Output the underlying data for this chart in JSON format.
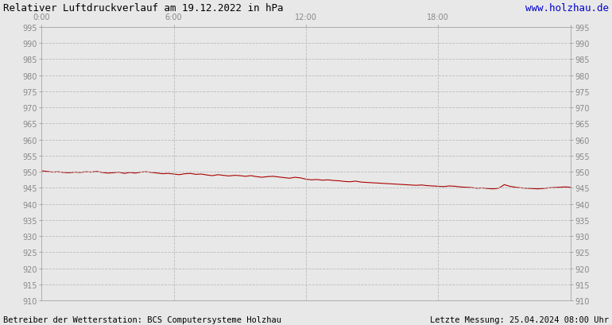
{
  "title": "Relativer Luftdruckverlauf am 19.12.2022 in hPa",
  "url_text": "www.holzhau.de",
  "bottom_left": "Betreiber der Wetterstation: BCS Computersysteme Holzhau",
  "bottom_right": "Letzte Messung: 25.04.2024 08:00 Uhr",
  "ylim": [
    910,
    995
  ],
  "ytick_step": 5,
  "xticks_hours": [
    0,
    6,
    12,
    18,
    24
  ],
  "xtick_labels": [
    "0:00",
    "6:00",
    "12:00",
    "18:00",
    ""
  ],
  "line_color": "#aa0000",
  "background_color": "#e8e8e8",
  "plot_bg_color": "#e8e8e8",
  "grid_color": "#bbbbbb",
  "title_color": "#000000",
  "url_color": "#0000cc",
  "tick_color": "#888888",
  "bottom_text_color": "#000000",
  "pressure_data": [
    [
      0.0,
      950.3
    ],
    [
      0.25,
      950.1
    ],
    [
      0.5,
      949.9
    ],
    [
      0.75,
      950.0
    ],
    [
      1.0,
      949.8
    ],
    [
      1.25,
      949.7
    ],
    [
      1.5,
      949.9
    ],
    [
      1.75,
      949.8
    ],
    [
      2.0,
      950.0
    ],
    [
      2.25,
      949.9
    ],
    [
      2.5,
      950.1
    ],
    [
      2.75,
      949.8
    ],
    [
      3.0,
      949.6
    ],
    [
      3.25,
      949.7
    ],
    [
      3.5,
      949.9
    ],
    [
      3.75,
      949.5
    ],
    [
      4.0,
      949.8
    ],
    [
      4.25,
      949.6
    ],
    [
      4.5,
      949.9
    ],
    [
      4.75,
      950.0
    ],
    [
      5.0,
      949.8
    ],
    [
      5.25,
      949.6
    ],
    [
      5.5,
      949.4
    ],
    [
      5.75,
      949.5
    ],
    [
      6.0,
      949.3
    ],
    [
      6.25,
      949.1
    ],
    [
      6.5,
      949.4
    ],
    [
      6.75,
      949.5
    ],
    [
      7.0,
      949.2
    ],
    [
      7.25,
      949.3
    ],
    [
      7.5,
      949.0
    ],
    [
      7.75,
      948.8
    ],
    [
      8.0,
      949.1
    ],
    [
      8.25,
      948.9
    ],
    [
      8.5,
      948.7
    ],
    [
      8.75,
      948.9
    ],
    [
      9.0,
      948.8
    ],
    [
      9.25,
      948.6
    ],
    [
      9.5,
      948.8
    ],
    [
      9.75,
      948.5
    ],
    [
      10.0,
      948.3
    ],
    [
      10.25,
      948.5
    ],
    [
      10.5,
      948.6
    ],
    [
      10.75,
      948.4
    ],
    [
      11.0,
      948.2
    ],
    [
      11.25,
      948.0
    ],
    [
      11.5,
      948.3
    ],
    [
      11.75,
      948.1
    ],
    [
      12.0,
      947.7
    ],
    [
      12.25,
      947.5
    ],
    [
      12.5,
      947.6
    ],
    [
      12.75,
      947.4
    ],
    [
      13.0,
      947.5
    ],
    [
      13.25,
      947.3
    ],
    [
      13.5,
      947.2
    ],
    [
      13.75,
      947.0
    ],
    [
      14.0,
      946.9
    ],
    [
      14.25,
      947.1
    ],
    [
      14.5,
      946.8
    ],
    [
      14.75,
      946.7
    ],
    [
      15.0,
      946.6
    ],
    [
      15.25,
      946.5
    ],
    [
      15.5,
      946.4
    ],
    [
      15.75,
      946.3
    ],
    [
      16.0,
      946.2
    ],
    [
      16.25,
      946.1
    ],
    [
      16.5,
      946.0
    ],
    [
      16.75,
      945.9
    ],
    [
      17.0,
      945.8
    ],
    [
      17.25,
      945.9
    ],
    [
      17.5,
      945.7
    ],
    [
      17.75,
      945.6
    ],
    [
      18.0,
      945.5
    ],
    [
      18.25,
      945.4
    ],
    [
      18.5,
      945.6
    ],
    [
      18.75,
      945.5
    ],
    [
      19.0,
      945.3
    ],
    [
      19.25,
      945.2
    ],
    [
      19.5,
      945.1
    ],
    [
      19.75,
      944.9
    ],
    [
      20.0,
      945.0
    ],
    [
      20.25,
      944.8
    ],
    [
      20.5,
      944.7
    ],
    [
      20.75,
      944.9
    ],
    [
      21.0,
      946.0
    ],
    [
      21.25,
      945.5
    ],
    [
      21.5,
      945.2
    ],
    [
      21.75,
      945.0
    ],
    [
      22.0,
      944.9
    ],
    [
      22.25,
      944.8
    ],
    [
      22.5,
      944.7
    ],
    [
      22.75,
      944.8
    ],
    [
      23.0,
      945.0
    ],
    [
      23.25,
      945.1
    ],
    [
      23.5,
      945.2
    ],
    [
      23.75,
      945.3
    ],
    [
      24.0,
      945.2
    ]
  ]
}
